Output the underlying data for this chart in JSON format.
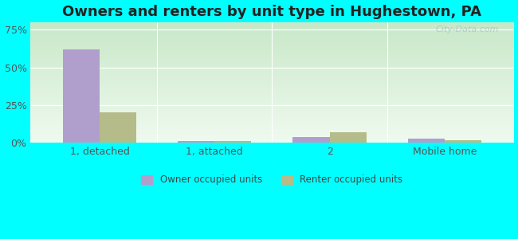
{
  "title": "Owners and renters by unit type in Hughestown, PA",
  "categories": [
    "1, detached",
    "1, attached",
    "2",
    "Mobile home"
  ],
  "owner_values": [
    62,
    1,
    4,
    3
  ],
  "renter_values": [
    20,
    1,
    7,
    2
  ],
  "owner_color": "#b09fcc",
  "renter_color": "#b5bc8a",
  "yticks": [
    0,
    25,
    50,
    75
  ],
  "ytick_labels": [
    "0%",
    "25%",
    "50%",
    "75%"
  ],
  "ylim": [
    0,
    80
  ],
  "legend_owner": "Owner occupied units",
  "legend_renter": "Renter occupied units",
  "bar_width": 0.32,
  "outer_bg": "#00ffff",
  "title_fontsize": 13,
  "axis_fontsize": 9,
  "watermark": "City-Data.com",
  "gradient_top": "#c8e8c8",
  "gradient_bottom": "#f0faf0"
}
